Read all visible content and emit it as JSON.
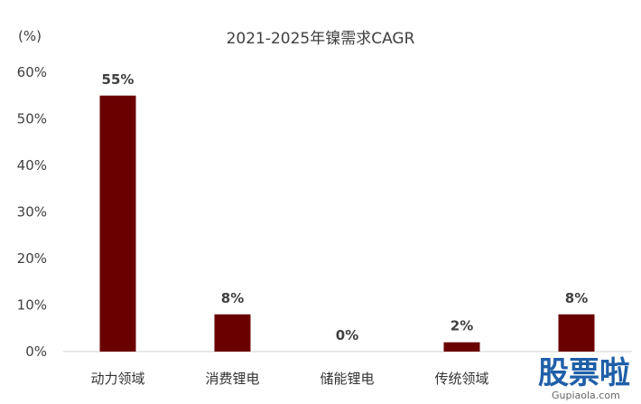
{
  "chart_data": {
    "type": "bar",
    "title": "2021-2025年镍需求CAGR",
    "unit_label": "(%)",
    "categories": [
      "动力领域",
      "消费锂电",
      "储能锂电",
      "传统领域",
      ""
    ],
    "values": [
      55,
      8,
      0,
      2,
      8
    ],
    "value_labels": [
      "55%",
      "8%",
      "0%",
      "2%",
      "8%"
    ],
    "yticks": [
      "0%",
      "10%",
      "20%",
      "30%",
      "40%",
      "50%",
      "60%"
    ],
    "ylim": [
      0,
      60
    ],
    "grid": false,
    "bar_color": "#6b0000"
  },
  "watermark": {
    "main": "股票啦",
    "sub": "Gupiaola.com"
  }
}
